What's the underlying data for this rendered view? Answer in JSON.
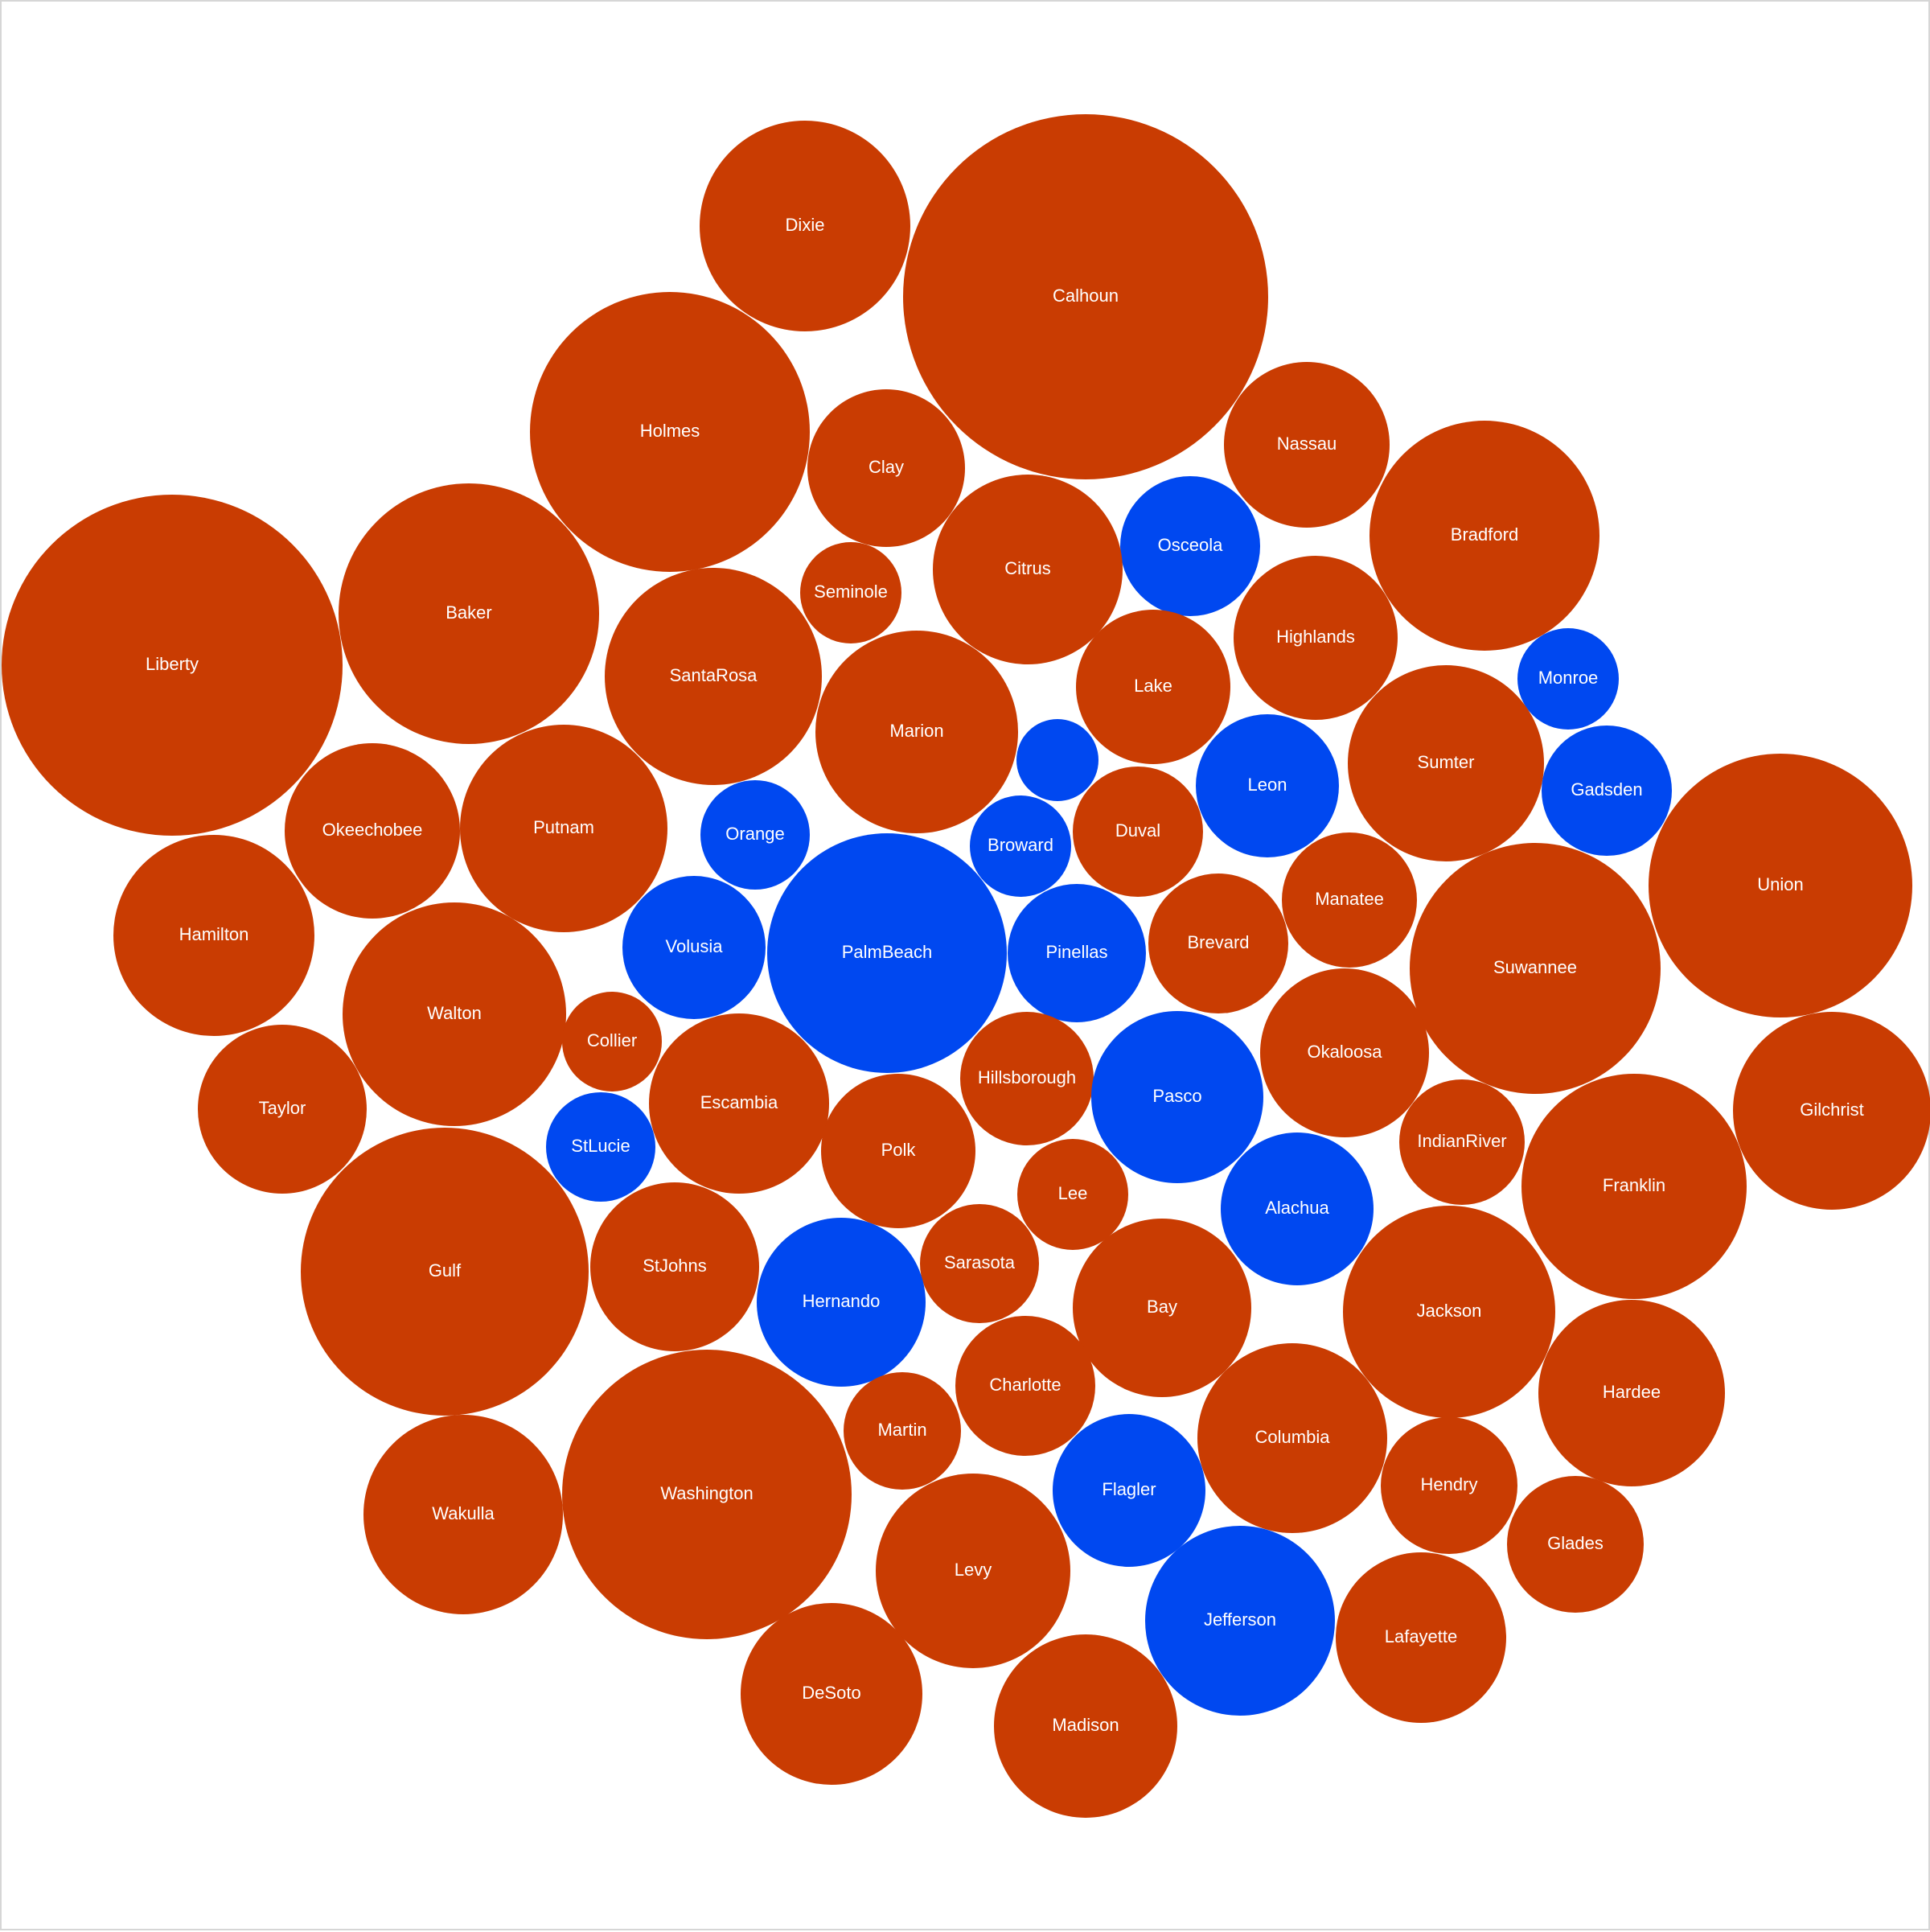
{
  "colors": {
    "red": "#C93C02",
    "blue": "#0048F0"
  },
  "chart_data": {
    "type": "bubble",
    "title": "",
    "grid": false,
    "legend": "none",
    "series": [
      {
        "name": "",
        "values": [
          {
            "label": "Dixie",
            "size": 131,
            "party": "red"
          },
          {
            "label": "Calhoun",
            "size": 227,
            "party": "red"
          },
          {
            "label": "Holmes",
            "size": 174,
            "party": "red"
          },
          {
            "label": "Clay",
            "size": 98,
            "party": "red"
          },
          {
            "label": "Nassau",
            "size": 103,
            "party": "red"
          },
          {
            "label": "Osceola",
            "size": 87,
            "party": "blue"
          },
          {
            "label": "Bradford",
            "size": 143,
            "party": "red"
          },
          {
            "label": "Citrus",
            "size": 118,
            "party": "red"
          },
          {
            "label": "Seminole",
            "size": 63,
            "party": "red"
          },
          {
            "label": "Liberty",
            "size": 212,
            "party": "red"
          },
          {
            "label": "Baker",
            "size": 162,
            "party": "red"
          },
          {
            "label": "SantaRosa",
            "size": 135,
            "party": "red"
          },
          {
            "label": "Highlands",
            "size": 102,
            "party": "red"
          },
          {
            "label": "Lake",
            "size": 96,
            "party": "red"
          },
          {
            "label": "Monroe",
            "size": 63,
            "party": "blue"
          },
          {
            "label": "Marion",
            "size": 126,
            "party": "red"
          },
          {
            "label": "",
            "size": 51,
            "party": "blue"
          },
          {
            "label": "Sumter",
            "size": 122,
            "party": "red"
          },
          {
            "label": "Leon",
            "size": 89,
            "party": "blue"
          },
          {
            "label": "Gadsden",
            "size": 81,
            "party": "blue"
          },
          {
            "label": "Okeechobee",
            "size": 109,
            "party": "red"
          },
          {
            "label": "Putnam",
            "size": 129,
            "party": "red"
          },
          {
            "label": "Union",
            "size": 164,
            "party": "red"
          },
          {
            "label": "Orange",
            "size": 68,
            "party": "blue"
          },
          {
            "label": "Duval",
            "size": 81,
            "party": "red"
          },
          {
            "label": "Broward",
            "size": 63,
            "party": "blue"
          },
          {
            "label": "Hamilton",
            "size": 125,
            "party": "red"
          },
          {
            "label": "Manatee",
            "size": 84,
            "party": "red"
          },
          {
            "label": "Volusia",
            "size": 89,
            "party": "blue"
          },
          {
            "label": "PalmBeach",
            "size": 149,
            "party": "blue"
          },
          {
            "label": "Pinellas",
            "size": 86,
            "party": "blue"
          },
          {
            "label": "Brevard",
            "size": 87,
            "party": "red"
          },
          {
            "label": "Suwannee",
            "size": 156,
            "party": "red"
          },
          {
            "label": "Walton",
            "size": 139,
            "party": "red"
          },
          {
            "label": "Collier",
            "size": 62,
            "party": "red"
          },
          {
            "label": "Okaloosa",
            "size": 105,
            "party": "red"
          },
          {
            "label": "Gilchrist",
            "size": 123,
            "party": "red"
          },
          {
            "label": "Taylor",
            "size": 105,
            "party": "red"
          },
          {
            "label": "Escambia",
            "size": 112,
            "party": "red"
          },
          {
            "label": "Hillsborough",
            "size": 83,
            "party": "red"
          },
          {
            "label": "Pasco",
            "size": 107,
            "party": "blue"
          },
          {
            "label": "StLucie",
            "size": 68,
            "party": "blue"
          },
          {
            "label": "Polk",
            "size": 96,
            "party": "red"
          },
          {
            "label": "IndianRiver",
            "size": 78,
            "party": "red"
          },
          {
            "label": "Franklin",
            "size": 140,
            "party": "red"
          },
          {
            "label": "Lee",
            "size": 69,
            "party": "red"
          },
          {
            "label": "Alachua",
            "size": 95,
            "party": "blue"
          },
          {
            "label": "Gulf",
            "size": 179,
            "party": "red"
          },
          {
            "label": "StJohns",
            "size": 105,
            "party": "red"
          },
          {
            "label": "Sarasota",
            "size": 74,
            "party": "red"
          },
          {
            "label": "Hernando",
            "size": 105,
            "party": "blue"
          },
          {
            "label": "Bay",
            "size": 111,
            "party": "red"
          },
          {
            "label": "Jackson",
            "size": 132,
            "party": "red"
          },
          {
            "label": "Hardee",
            "size": 116,
            "party": "red"
          },
          {
            "label": "Charlotte",
            "size": 87,
            "party": "red"
          },
          {
            "label": "Martin",
            "size": 73,
            "party": "red"
          },
          {
            "label": "Columbia",
            "size": 118,
            "party": "red"
          },
          {
            "label": "Wakulla",
            "size": 124,
            "party": "red"
          },
          {
            "label": "Washington",
            "size": 180,
            "party": "red"
          },
          {
            "label": "Flagler",
            "size": 95,
            "party": "blue"
          },
          {
            "label": "Hendry",
            "size": 85,
            "party": "red"
          },
          {
            "label": "Glades",
            "size": 85,
            "party": "red"
          },
          {
            "label": "Levy",
            "size": 121,
            "party": "red"
          },
          {
            "label": "Jefferson",
            "size": 118,
            "party": "blue"
          },
          {
            "label": "Lafayette",
            "size": 106,
            "party": "red"
          },
          {
            "label": "DeSoto",
            "size": 113,
            "party": "red"
          },
          {
            "label": "Madison",
            "size": 114,
            "party": "red"
          }
        ]
      }
    ]
  }
}
